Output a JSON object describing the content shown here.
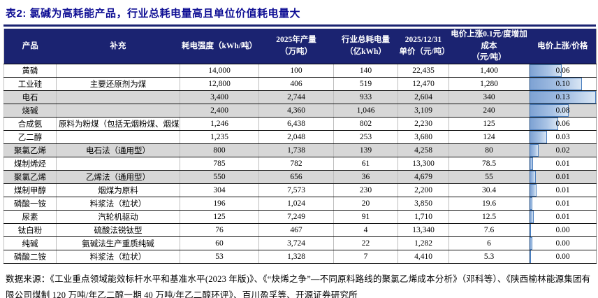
{
  "title": "表2: 氯碱为高耗能产品，行业总耗电量高且单位价值耗电量大",
  "colors": {
    "header_bg": "#1b2371",
    "title_text": "#0e0e94",
    "shaded_row": "#d7d7d7",
    "bar_fill_left": "#7ea2d3",
    "bar_fill_right": "#d9e6f4",
    "bar_border": "#4a7ebe"
  },
  "table": {
    "headers": [
      {
        "line1": "产品",
        "line2": ""
      },
      {
        "line1": "补充",
        "line2": ""
      },
      {
        "line1": "耗电强度（kWh/吨）",
        "line2": ""
      },
      {
        "line1": "2025年产量",
        "line2": "（万吨）"
      },
      {
        "line1": "行业总耗电量",
        "line2": "（亿kWh）"
      },
      {
        "line1": "2025/12/31",
        "line2": "单价（元/吨）"
      },
      {
        "line1": "电价上涨0.1元/度增加成本",
        "line2": "（元/吨）"
      },
      {
        "line1": "电价上涨/价格",
        "line2": ""
      }
    ],
    "rows": [
      {
        "product": "黄磷",
        "note": "",
        "intensity": "14,000",
        "output": "100",
        "industry_kwh": "140",
        "unit_price": "22,435",
        "cost_increase": "1,400",
        "ratio": "0.06",
        "bar_pct": 48,
        "shaded": false
      },
      {
        "product": "工业硅",
        "note": "主要还原剂为煤",
        "intensity": "12,800",
        "output": "406",
        "industry_kwh": "519",
        "unit_price": "12,470",
        "cost_increase": "1,280",
        "ratio": "0.10",
        "bar_pct": 79,
        "shaded": false
      },
      {
        "product": "电石",
        "note": "",
        "intensity": "3,400",
        "output": "2,744",
        "industry_kwh": "933",
        "unit_price": "2,604",
        "cost_increase": "340",
        "ratio": "0.13",
        "bar_pct": 100,
        "shaded": true
      },
      {
        "product": "烧碱",
        "note": "",
        "intensity": "2,400",
        "output": "4,360",
        "industry_kwh": "1,046",
        "unit_price": "3,109",
        "cost_increase": "240",
        "ratio": "0.08",
        "bar_pct": 59,
        "shaded": true
      },
      {
        "product": "合成氨",
        "note": "原料为粉煤（包括无烟粉煤、烟煤）",
        "intensity": "1,246",
        "output": "6,438",
        "industry_kwh": "802",
        "unit_price": "2,230",
        "cost_increase": "125",
        "ratio": "0.06",
        "bar_pct": 43,
        "shaded": false
      },
      {
        "product": "乙二醇",
        "note": "",
        "intensity": "1,235",
        "output": "2,048",
        "industry_kwh": "253",
        "unit_price": "3,680",
        "cost_increase": "124",
        "ratio": "0.03",
        "bar_pct": 26,
        "shaded": false
      },
      {
        "product": "聚氯乙烯",
        "note": "电石法（通用型）",
        "intensity": "800",
        "output": "1,738",
        "industry_kwh": "139",
        "unit_price": "4,258",
        "cost_increase": "80",
        "ratio": "0.02",
        "bar_pct": 14,
        "shaded": true
      },
      {
        "product": "煤制烯烃",
        "note": "",
        "intensity": "785",
        "output": "782",
        "industry_kwh": "61",
        "unit_price": "13,300",
        "cost_increase": "78.5",
        "ratio": "0.01",
        "bar_pct": 5,
        "shaded": false
      },
      {
        "product": "聚氯乙烯",
        "note": "乙烯法（通用型）",
        "intensity": "550",
        "output": "656",
        "industry_kwh": "36",
        "unit_price": "4,679",
        "cost_increase": "55",
        "ratio": "0.01",
        "bar_pct": 9,
        "shaded": true
      },
      {
        "product": "煤制甲醇",
        "note": "烟煤为原料",
        "intensity": "304",
        "output": "7,573",
        "industry_kwh": "230",
        "unit_price": "2,200",
        "cost_increase": "30.4",
        "ratio": "0.01",
        "bar_pct": 11,
        "shaded": false
      },
      {
        "product": "磷酸一铵",
        "note": "料浆法（粒状）",
        "intensity": "196",
        "output": "1,024",
        "industry_kwh": "20",
        "unit_price": "3,850",
        "cost_increase": "19.6",
        "ratio": "0.01",
        "bar_pct": 4,
        "shaded": false
      },
      {
        "product": "尿素",
        "note": "汽轮机驱动",
        "intensity": "125",
        "output": "7,249",
        "industry_kwh": "91",
        "unit_price": "1,710",
        "cost_increase": "12.5",
        "ratio": "0.01",
        "bar_pct": 6,
        "shaded": false
      },
      {
        "product": "钛白粉",
        "note": "硫酸法锐钛型",
        "intensity": "76",
        "output": "467",
        "industry_kwh": "4",
        "unit_price": "13,340",
        "cost_increase": "7.6",
        "ratio": "0.00",
        "bar_pct": 1,
        "shaded": false
      },
      {
        "product": "纯碱",
        "note": "氨碱法生产重质纯碱",
        "intensity": "60",
        "output": "3,724",
        "industry_kwh": "22",
        "unit_price": "1,282",
        "cost_increase": "6",
        "ratio": "0.00",
        "bar_pct": 4,
        "shaded": false
      },
      {
        "product": "磷酸二铵",
        "note": "料浆法（粒状）",
        "intensity": "53",
        "output": "1,328",
        "industry_kwh": "7",
        "unit_price": "4,410",
        "cost_increase": "5.3",
        "ratio": "0.00",
        "bar_pct": 1,
        "shaded": false
      }
    ]
  },
  "footer": {
    "source_note": "数据来源：《工业重点领域能效标杆水平和基准水平(2023 年版)》、《“炔烯之争”—不同原料路线的聚氯乙烯成本分析》（邓科等）、《陕西榆林能源集团有限公司煤制 120 万吨/年乙二醇一期 40 万吨/年乙二醇环评》、百川盈孚等、开源证券研究所"
  }
}
